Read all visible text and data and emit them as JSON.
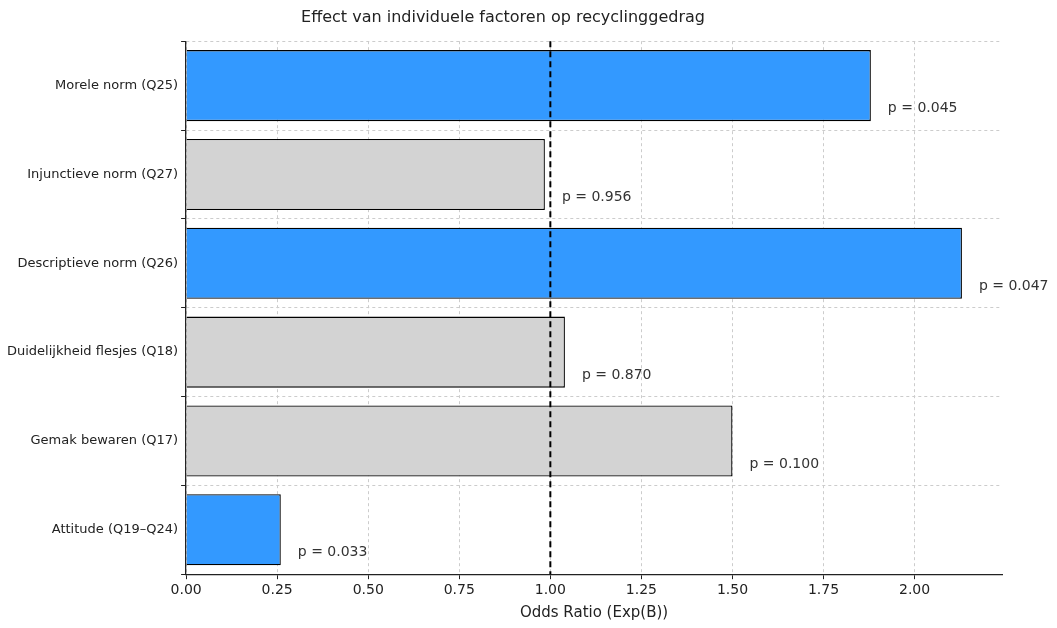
{
  "chart_data": {
    "type": "bar",
    "orientation": "horizontal",
    "title": "Effect van individuele factoren op recyclinggedrag",
    "xlabel": "Odds Ratio (Exp(B))",
    "categories": [
      "Morele norm (Q25)",
      "Injunctieve norm (Q27)",
      "Descriptieve norm (Q26)",
      "Duidelijkheid flesjes (Q18)",
      "Gemak bewaren (Q17)",
      "Attitude (Q19–Q24)"
    ],
    "values": [
      1.88,
      0.985,
      2.13,
      1.04,
      1.5,
      0.26
    ],
    "colors": [
      "#3399ff",
      "#d3d3d3",
      "#3399ff",
      "#d3d3d3",
      "#d3d3d3",
      "#3399ff"
    ],
    "xlim": [
      0,
      2.24
    ],
    "xticks": [
      {
        "value": 0,
        "label": "0.00"
      },
      {
        "value": 0.25,
        "label": "0.25"
      },
      {
        "value": 0.5,
        "label": "0.50"
      },
      {
        "value": 0.75,
        "label": "0.75"
      },
      {
        "value": 1,
        "label": "1.00"
      },
      {
        "value": 1.25,
        "label": "1.25"
      },
      {
        "value": 1.5,
        "label": "1.50"
      },
      {
        "value": 1.75,
        "label": "1.75"
      },
      {
        "value": 2,
        "label": "2.00"
      }
    ],
    "ref_lines": [
      {
        "axis": "x",
        "value": 1,
        "color": "#000000",
        "line_style": "dashed"
      }
    ],
    "annotations": [
      {
        "text": "p = 0.045",
        "x": 1.88,
        "y": "Morele norm (Q25)"
      },
      {
        "text": "p = 0.956",
        "x": 0.985,
        "y": "Injunctieve norm (Q27)"
      },
      {
        "text": "p = 0.047",
        "x": 2.13,
        "y": "Descriptieve norm (Q26)"
      },
      {
        "text": "p = 0.870",
        "x": 1.04,
        "y": "Duidelijkheid flesjes (Q18)"
      },
      {
        "text": "p = 0.100",
        "x": 1.5,
        "y": "Gemak bewaren (Q17)"
      },
      {
        "text": "p = 0.033",
        "x": 0.26,
        "y": "Attitude (Q19–Q24)"
      }
    ],
    "grid": true,
    "legend": false
  }
}
